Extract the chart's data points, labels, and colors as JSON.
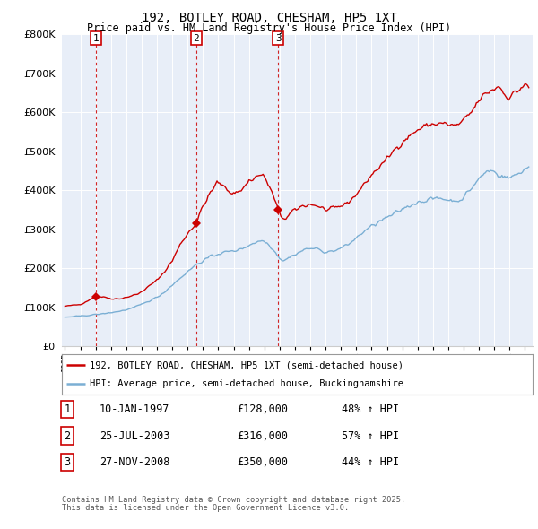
{
  "title": "192, BOTLEY ROAD, CHESHAM, HP5 1XT",
  "subtitle": "Price paid vs. HM Land Registry's House Price Index (HPI)",
  "legend_property": "192, BOTLEY ROAD, CHESHAM, HP5 1XT (semi-detached house)",
  "legend_hpi": "HPI: Average price, semi-detached house, Buckinghamshire",
  "footer1": "Contains HM Land Registry data © Crown copyright and database right 2025.",
  "footer2": "This data is licensed under the Open Government Licence v3.0.",
  "transactions": [
    {
      "num": 1,
      "date": "10-JAN-1997",
      "price": 128000,
      "hpi_change": "48% ↑ HPI",
      "year": 1997.03
    },
    {
      "num": 2,
      "date": "25-JUL-2003",
      "price": 316000,
      "hpi_change": "57% ↑ HPI",
      "year": 2003.56
    },
    {
      "num": 3,
      "date": "27-NOV-2008",
      "price": 350000,
      "hpi_change": "44% ↑ HPI",
      "year": 2008.9
    }
  ],
  "property_color": "#cc0000",
  "hpi_color": "#7bafd4",
  "dashed_line_color": "#cc0000",
  "marker_color": "#cc0000",
  "plot_bg_color": "#e8eef8",
  "ylim_max": 800000,
  "xlim_start": 1994.8,
  "xlim_end": 2025.5
}
